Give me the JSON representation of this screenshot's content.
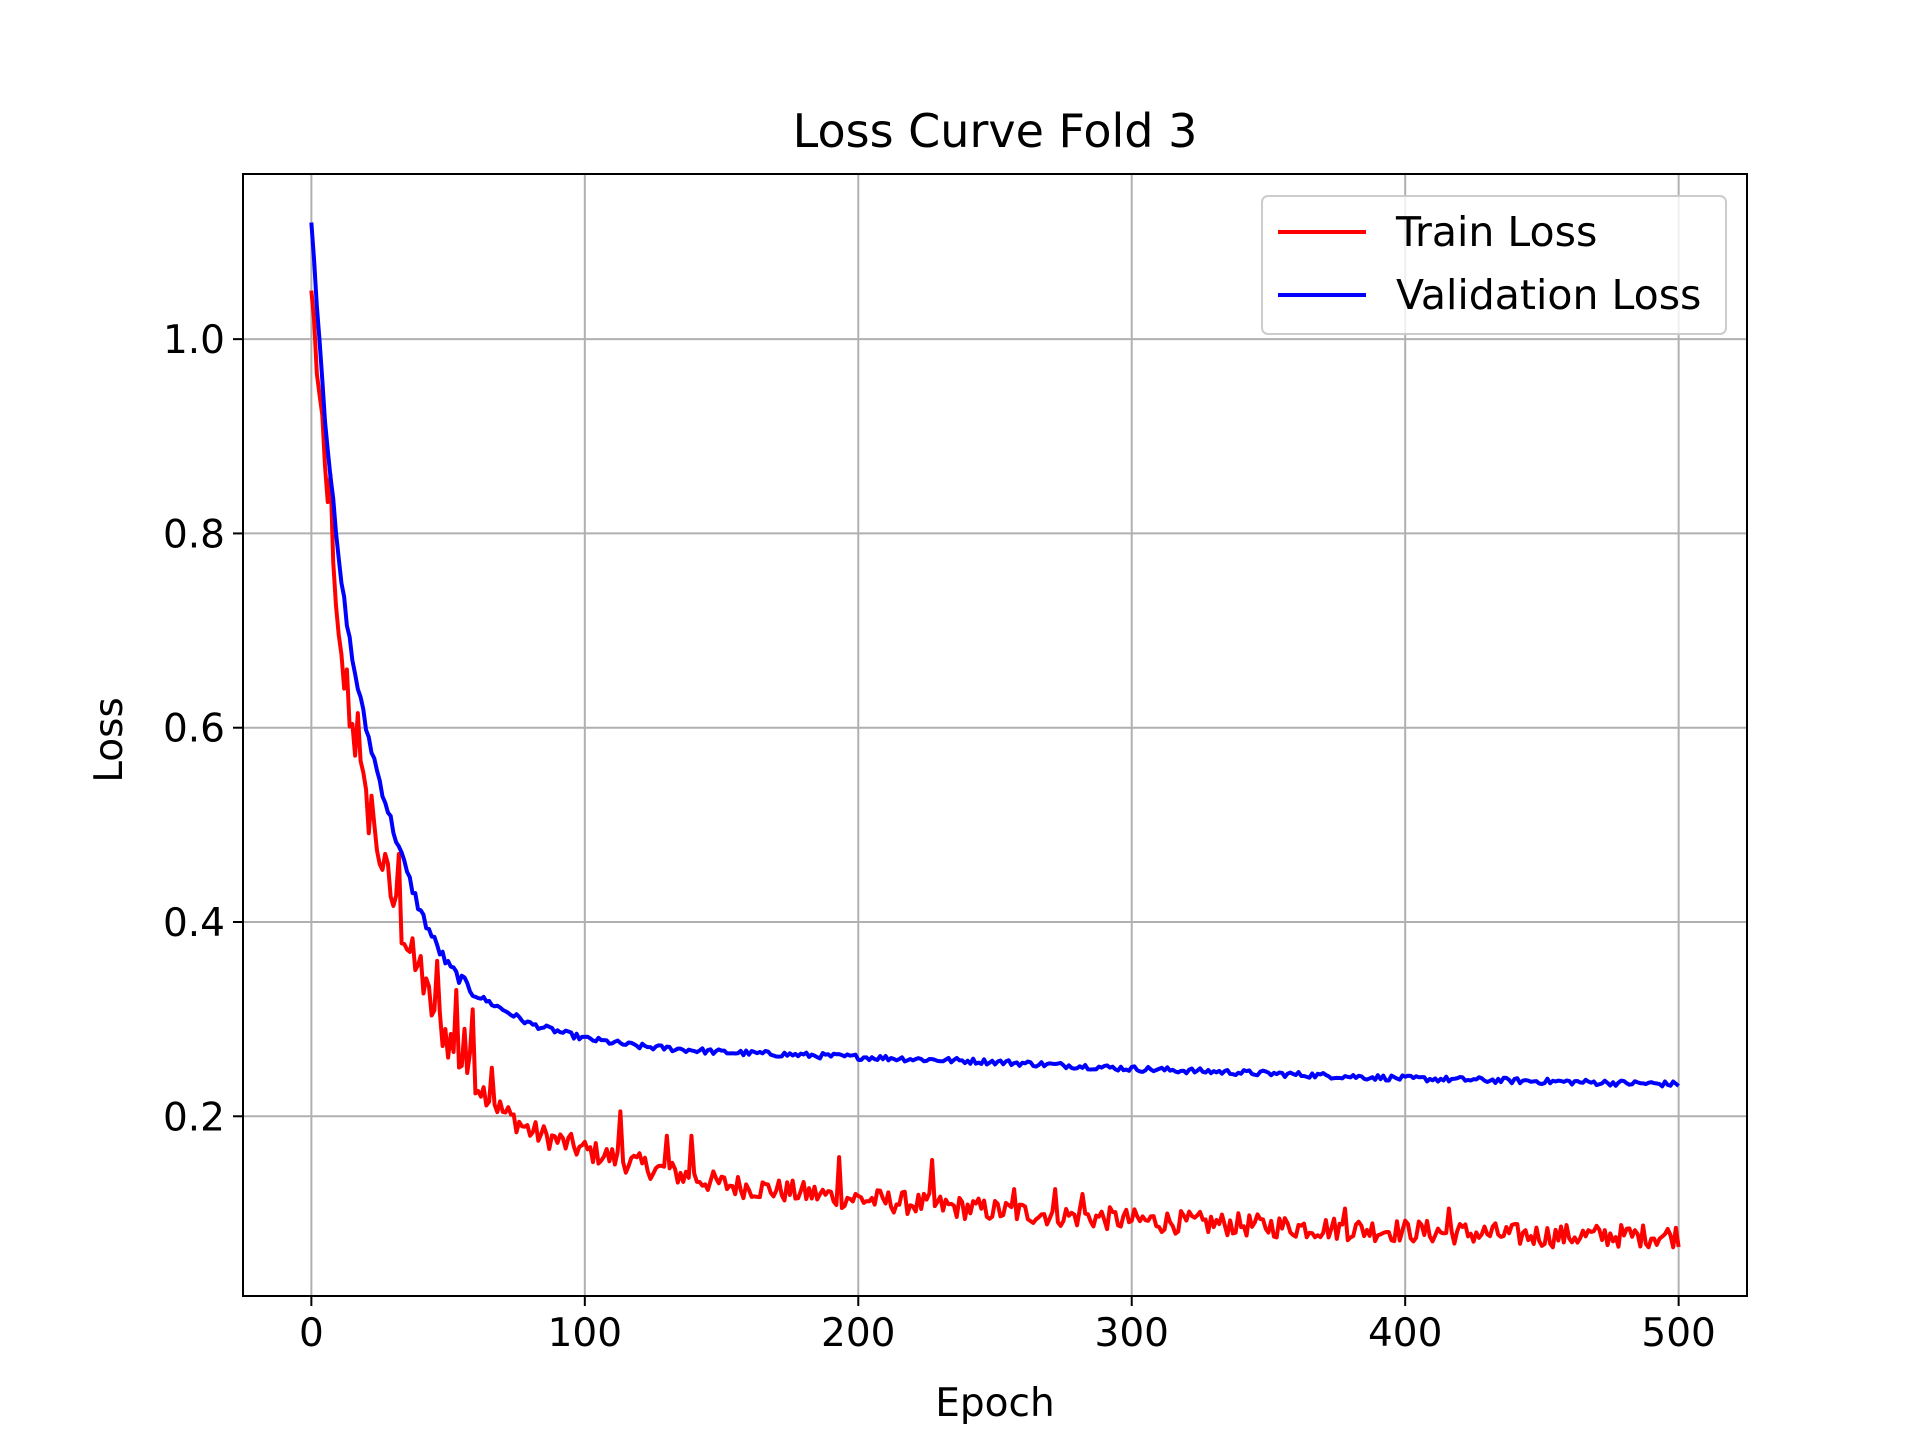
{
  "chart_data": {
    "type": "line",
    "title": "Loss Curve Fold 3",
    "xlabel": "Epoch",
    "ylabel": "Loss",
    "xlim": [
      -25,
      525
    ],
    "ylim": [
      0.015,
      1.17
    ],
    "xticks": [
      0,
      100,
      200,
      300,
      400,
      500
    ],
    "xtick_labels": [
      "0",
      "100",
      "200",
      "300",
      "400",
      "500"
    ],
    "yticks": [
      0.2,
      0.4,
      0.6,
      0.8,
      1.0
    ],
    "ytick_labels": [
      "0.2",
      "0.4",
      "0.6",
      "0.8",
      "1.0"
    ],
    "grid": true,
    "legend_position": "top-right",
    "epochs": 501,
    "series": [
      {
        "name": "Train Loss",
        "label": "Train Loss",
        "color": "#ff0000",
        "anchors": [
          [
            0,
            1.05
          ],
          [
            5,
            0.86
          ],
          [
            10,
            0.68
          ],
          [
            20,
            0.52
          ],
          [
            30,
            0.42
          ],
          [
            40,
            0.335
          ],
          [
            50,
            0.28
          ],
          [
            60,
            0.235
          ],
          [
            70,
            0.205
          ],
          [
            80,
            0.185
          ],
          [
            100,
            0.165
          ],
          [
            120,
            0.15
          ],
          [
            150,
            0.13
          ],
          [
            200,
            0.115
          ],
          [
            250,
            0.103
          ],
          [
            300,
            0.093
          ],
          [
            350,
            0.087
          ],
          [
            400,
            0.082
          ],
          [
            450,
            0.077
          ],
          [
            500,
            0.077
          ]
        ],
        "noise": 0.012,
        "spikes": [
          [
            7,
            0.86
          ],
          [
            13,
            0.66
          ],
          [
            17,
            0.615
          ],
          [
            22,
            0.53
          ],
          [
            28,
            0.46
          ],
          [
            32,
            0.47
          ],
          [
            40,
            0.365
          ],
          [
            46,
            0.36
          ],
          [
            53,
            0.33
          ],
          [
            56,
            0.29
          ],
          [
            59,
            0.31
          ],
          [
            66,
            0.25
          ],
          [
            113,
            0.205
          ],
          [
            130,
            0.18
          ],
          [
            139,
            0.18
          ],
          [
            193,
            0.158
          ],
          [
            227,
            0.155
          ],
          [
            257,
            0.125
          ],
          [
            272,
            0.125
          ],
          [
            282,
            0.12
          ],
          [
            378,
            0.105
          ],
          [
            416,
            0.105
          ]
        ]
      },
      {
        "name": "Validation Loss",
        "label": "Validation Loss",
        "color": "#0000ff",
        "anchors": [
          [
            0,
            1.12
          ],
          [
            5,
            0.92
          ],
          [
            10,
            0.77
          ],
          [
            15,
            0.67
          ],
          [
            20,
            0.6
          ],
          [
            25,
            0.545
          ],
          [
            30,
            0.495
          ],
          [
            35,
            0.45
          ],
          [
            40,
            0.41
          ],
          [
            45,
            0.38
          ],
          [
            50,
            0.355
          ],
          [
            55,
            0.34
          ],
          [
            60,
            0.325
          ],
          [
            70,
            0.31
          ],
          [
            80,
            0.295
          ],
          [
            100,
            0.28
          ],
          [
            120,
            0.272
          ],
          [
            150,
            0.266
          ],
          [
            200,
            0.261
          ],
          [
            250,
            0.256
          ],
          [
            300,
            0.249
          ],
          [
            350,
            0.244
          ],
          [
            400,
            0.239
          ],
          [
            450,
            0.236
          ],
          [
            500,
            0.233
          ]
        ],
        "noise": 0.003,
        "spikes": []
      }
    ]
  }
}
